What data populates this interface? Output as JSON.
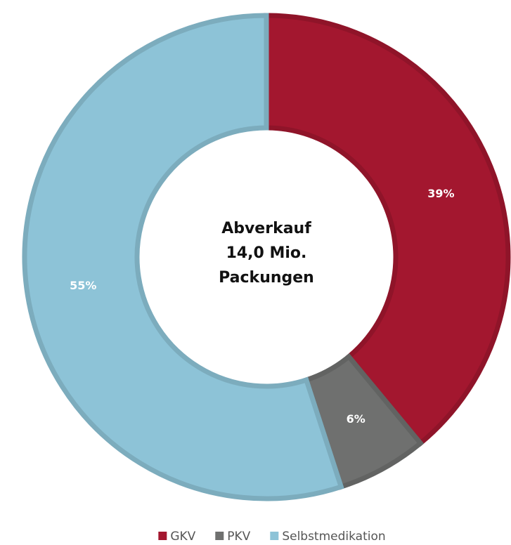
{
  "chart_data": {
    "type": "donut",
    "center_text": [
      "Abverkauf",
      "14,0 Mio.",
      "Packungen"
    ],
    "categories": [
      "GKV",
      "PKV",
      "Selbstmedikation"
    ],
    "values": [
      39,
      6,
      55
    ],
    "value_labels": [
      "39%",
      "6%",
      "55%"
    ],
    "colors": [
      "#a3172f",
      "#6f706f",
      "#8dc3d7"
    ],
    "legend": "bottom"
  }
}
